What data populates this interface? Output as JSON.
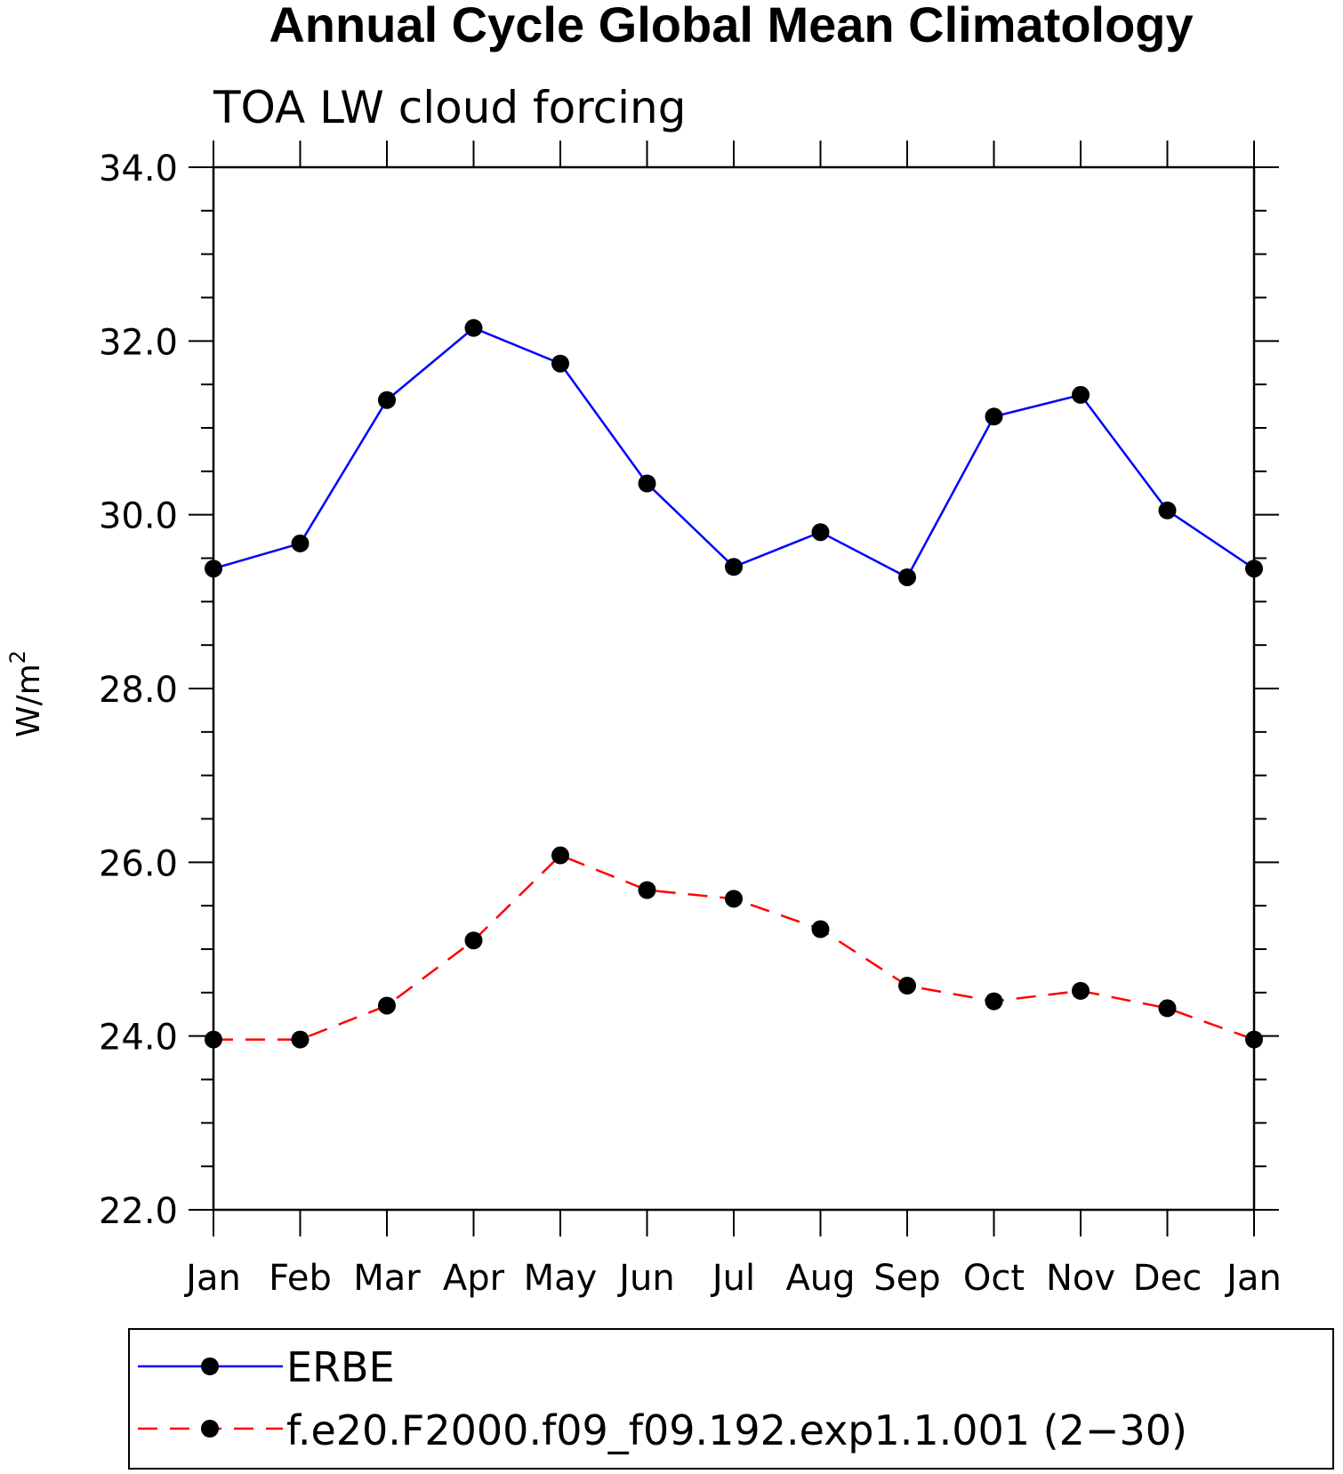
{
  "chart_data": {
    "type": "line",
    "title": "Annual Cycle Global Mean Climatology",
    "subtitle": "TOA LW cloud forcing",
    "ylabel": "W/m",
    "ylabel_sup": "2",
    "xlabel": "",
    "categories": [
      "Jan",
      "Feb",
      "Mar",
      "Apr",
      "May",
      "Jun",
      "Jul",
      "Aug",
      "Sep",
      "Oct",
      "Nov",
      "Dec",
      "Jan"
    ],
    "ylim": [
      22.0,
      34.0
    ],
    "yticks": [
      "22.0",
      "24.0",
      "26.0",
      "28.0",
      "30.0",
      "32.0",
      "34.0"
    ],
    "legend_position": "bottom",
    "series": [
      {
        "name": "ERBE",
        "color": "#0000ff",
        "style": "solid",
        "values": [
          29.38,
          29.67,
          31.32,
          32.15,
          31.74,
          30.36,
          29.4,
          29.8,
          29.28,
          31.13,
          31.38,
          30.05,
          29.38
        ]
      },
      {
        "name": "f.e20.F2000.f09_f09.192.exp1.1.001 (2−30)",
        "color": "#ff0000",
        "style": "dashed",
        "values": [
          23.96,
          23.96,
          24.35,
          25.1,
          26.08,
          25.68,
          25.58,
          25.23,
          24.58,
          24.4,
          24.52,
          24.32,
          23.96
        ]
      }
    ]
  }
}
